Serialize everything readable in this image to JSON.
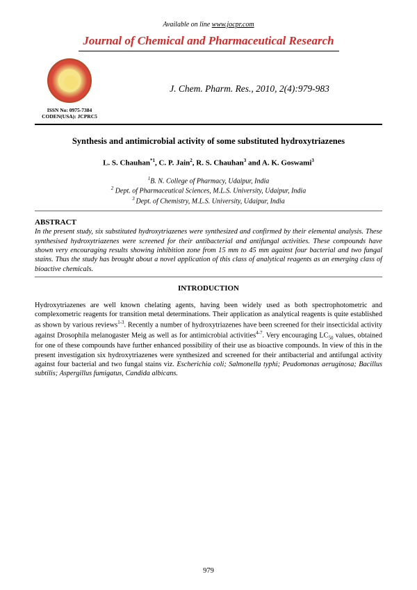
{
  "header": {
    "available_prefix": "Available on line ",
    "site_url": "www.jocpr.com",
    "journal_title": "Journal of Chemical and Pharmaceutical Research",
    "issn": "ISSN No: 0975-7384",
    "coden": "CODEN(USA): JCPRC5",
    "citation": "J. Chem. Pharm. Res., 2010, 2(4):979-983"
  },
  "paper": {
    "title": "Synthesis and antimicrobial activity of some substituted hydroxytriazenes",
    "authors_html": "L. S. Chauhan*1, C. P. Jain2, R. S. Chauhan3 and A. K. Goswami3",
    "affiliations": [
      "1B. N. College of Pharmacy, Udaipur, India",
      "2 Dept. of Pharmaceutical Sciences, M.L.S. University, Udaipur, India",
      "3 Dept. of Chemistry, M.L.S. University, Udaipur, India"
    ]
  },
  "abstract": {
    "heading": "ABSTRACT",
    "text": "In the present study, six substituted hydroxytriazenes were synthesized and confirmed by their elemental analysis. These synthesised hydroxytriazenes were screened for their antibacterial and antifungal activities. These compounds have shown very encouraging results showing inhibition zone from 15 mm to 45 mm against four bacterial and two fungal stains. Thus the study has brought about a novel application of this class of analytical reagents as an emerging class of bioactive chemicals."
  },
  "introduction": {
    "heading": "INTRODUCTION",
    "body_part1": "Hydroxytriazenes are well known chelating agents, having been widely used as both spectrophotometric and complexometric reagents for transition metal determinations. Their application as analytical reagents is quite established as shown by various reviews",
    "ref1": "1-3",
    "body_part2": ". Recently a number of hydroxytriazenes have been screened for their insecticidal activity against Drosophila melanogaster Meig as well as for antimicrobial activities",
    "ref2": "4-7",
    "body_part3": ". Very encouraging LC",
    "sub50": "50",
    "body_part4": " values, obtained for one of these compounds have further enhanced possibility of their use as bioactive compounds. In view of this in the present investigation six hydroxytriazenes were synthesized and screened for their antibacterial and antifungal activity against four bacterial and two fungal stains viz. ",
    "species": "Escherichia coli; Salmonella typhi; Peudomonas aeruginosa; Bacillus subtilis; Aspergillus fumigatus, Candida albicans."
  },
  "page_number": "979",
  "colors": {
    "journal_title": "#d42a2a",
    "text": "#000000",
    "hr_light": "#666666",
    "logo_outer": "#c53a2a",
    "logo_inner": "#f5e07a",
    "background": "#ffffff"
  },
  "fonts": {
    "base_family": "Times New Roman",
    "journal_title_pt": 17,
    "citation_pt": 13.5,
    "paper_title_pt": 12.5,
    "body_pt": 10.3
  }
}
